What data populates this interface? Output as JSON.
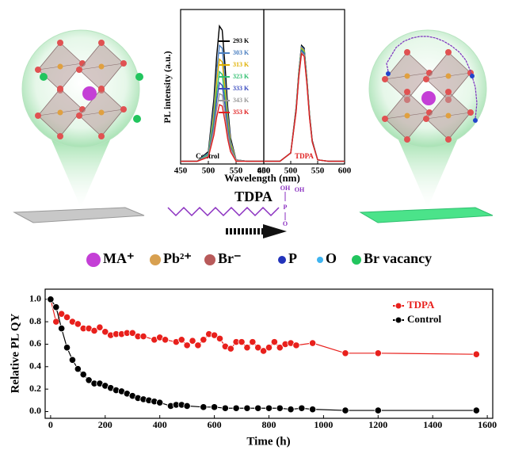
{
  "chart_data": [
    {
      "type": "line",
      "xlabel": "Wavelength (nm)",
      "ylabel": "PL intensity (a.u.)",
      "panel_label": "Control",
      "legend": "upper right",
      "x": [
        450,
        480,
        500,
        510,
        515,
        520,
        525,
        530,
        535,
        540,
        550,
        570,
        600
      ],
      "xlim": [
        450,
        600
      ],
      "xticks": [
        450,
        500,
        550,
        600
      ],
      "ylim": [
        -0.02,
        1.1
      ],
      "series": [
        {
          "name": "293 K",
          "color": "#000000",
          "values": [
            0,
            0,
            0.07,
            0.45,
            0.76,
            0.98,
            0.95,
            0.7,
            0.39,
            0.17,
            0.01,
            0,
            0
          ]
        },
        {
          "name": "303 K",
          "color": "#4a7fc1",
          "values": [
            0,
            0,
            0.06,
            0.39,
            0.65,
            0.84,
            0.82,
            0.6,
            0.34,
            0.15,
            0.01,
            0,
            0
          ]
        },
        {
          "name": "313 K",
          "color": "#e0b000",
          "values": [
            0,
            0,
            0.05,
            0.34,
            0.58,
            0.74,
            0.72,
            0.53,
            0.3,
            0.13,
            0.01,
            0,
            0
          ]
        },
        {
          "name": "323 K",
          "color": "#2fbf6f",
          "values": [
            0,
            0,
            0.05,
            0.3,
            0.5,
            0.65,
            0.63,
            0.46,
            0.26,
            0.11,
            0.01,
            0,
            0
          ]
        },
        {
          "name": "333 K",
          "color": "#3b4cbf",
          "values": [
            0,
            0,
            0.04,
            0.26,
            0.44,
            0.57,
            0.55,
            0.41,
            0.23,
            0.1,
            0.01,
            0,
            0
          ]
        },
        {
          "name": "343 K",
          "color": "#999999",
          "values": [
            0,
            0,
            0.04,
            0.23,
            0.38,
            0.49,
            0.48,
            0.35,
            0.2,
            0.09,
            0.01,
            0,
            0
          ]
        },
        {
          "name": "353 K",
          "color": "#e02020",
          "values": [
            0,
            0,
            0.03,
            0.19,
            0.32,
            0.41,
            0.4,
            0.29,
            0.16,
            0.07,
            0,
            0,
            0
          ]
        }
      ]
    },
    {
      "type": "line",
      "panel_label": "TDPA",
      "x": [
        450,
        480,
        500,
        510,
        515,
        520,
        525,
        530,
        535,
        540,
        550,
        570,
        600
      ],
      "xlim": [
        450,
        600
      ],
      "xticks": [
        450,
        500,
        550,
        600
      ],
      "ylim": [
        -0.02,
        1.1
      ],
      "series": [
        {
          "color": "#000000",
          "values": [
            0,
            0,
            0.06,
            0.39,
            0.65,
            0.84,
            0.82,
            0.6,
            0.34,
            0.15,
            0.01,
            0,
            0
          ]
        },
        {
          "color": "#4a7fc1",
          "values": [
            0,
            0,
            0.06,
            0.38,
            0.65,
            0.83,
            0.81,
            0.6,
            0.33,
            0.14,
            0.01,
            0,
            0
          ]
        },
        {
          "color": "#e0b000",
          "values": [
            0,
            0,
            0.06,
            0.38,
            0.64,
            0.82,
            0.8,
            0.59,
            0.33,
            0.14,
            0.01,
            0,
            0
          ]
        },
        {
          "color": "#2fbf6f",
          "values": [
            0,
            0,
            0.06,
            0.37,
            0.63,
            0.81,
            0.79,
            0.58,
            0.32,
            0.14,
            0.01,
            0,
            0
          ]
        },
        {
          "color": "#3b4cbf",
          "values": [
            0,
            0,
            0.06,
            0.37,
            0.62,
            0.8,
            0.78,
            0.57,
            0.32,
            0.14,
            0.01,
            0,
            0
          ]
        },
        {
          "color": "#999999",
          "values": [
            0,
            0,
            0.06,
            0.36,
            0.62,
            0.79,
            0.77,
            0.57,
            0.32,
            0.14,
            0.01,
            0,
            0
          ]
        },
        {
          "color": "#e02020",
          "values": [
            0,
            0,
            0.06,
            0.36,
            0.61,
            0.78,
            0.76,
            0.56,
            0.31,
            0.14,
            0.01,
            0,
            0
          ]
        }
      ]
    },
    {
      "type": "line",
      "xlabel": "Time (h)",
      "ylabel": "Relative PL QY",
      "legend": "upper right",
      "markers": true,
      "xlim": [
        -20,
        1620
      ],
      "xticks": [
        0,
        200,
        400,
        600,
        800,
        1000,
        1200,
        1400,
        1600
      ],
      "ylim": [
        -0.06,
        1.09
      ],
      "yticks": [
        {
          "value": 0,
          "label": "0.0"
        },
        0.2,
        0.4,
        0.6,
        0.8,
        {
          "value": 1,
          "label": "1.0"
        }
      ],
      "series": [
        {
          "name": "TDPA",
          "color": "#e8201c",
          "x": [
            0,
            20,
            40,
            60,
            80,
            100,
            120,
            140,
            160,
            180,
            200,
            220,
            240,
            260,
            280,
            300,
            320,
            340,
            380,
            400,
            420,
            460,
            480,
            500,
            520,
            540,
            560,
            580,
            600,
            620,
            640,
            660,
            680,
            700,
            720,
            740,
            760,
            780,
            800,
            820,
            840,
            860,
            880,
            900,
            960,
            1080,
            1200,
            1560
          ],
          "values": [
            1.0,
            0.8,
            0.87,
            0.84,
            0.8,
            0.78,
            0.74,
            0.74,
            0.72,
            0.75,
            0.71,
            0.68,
            0.69,
            0.69,
            0.7,
            0.7,
            0.67,
            0.67,
            0.64,
            0.66,
            0.64,
            0.62,
            0.64,
            0.59,
            0.63,
            0.59,
            0.64,
            0.69,
            0.68,
            0.65,
            0.58,
            0.56,
            0.62,
            0.62,
            0.57,
            0.62,
            0.57,
            0.54,
            0.57,
            0.62,
            0.57,
            0.6,
            0.61,
            0.59,
            0.61,
            0.52,
            0.52,
            0.51
          ]
        },
        {
          "name": "Control",
          "color": "#000000",
          "x": [
            0,
            20,
            40,
            60,
            80,
            100,
            120,
            140,
            160,
            180,
            200,
            220,
            240,
            260,
            280,
            300,
            320,
            340,
            360,
            380,
            400,
            440,
            460,
            480,
            500,
            560,
            600,
            640,
            680,
            720,
            760,
            800,
            840,
            880,
            920,
            960,
            1080,
            1200,
            1560
          ],
          "values": [
            1.0,
            0.93,
            0.74,
            0.57,
            0.46,
            0.38,
            0.33,
            0.28,
            0.25,
            0.25,
            0.23,
            0.21,
            0.19,
            0.18,
            0.16,
            0.14,
            0.12,
            0.11,
            0.1,
            0.09,
            0.08,
            0.05,
            0.06,
            0.06,
            0.05,
            0.04,
            0.04,
            0.03,
            0.03,
            0.03,
            0.03,
            0.03,
            0.03,
            0.02,
            0.03,
            0.02,
            0.01,
            0.01,
            0.01
          ]
        }
      ]
    }
  ],
  "schematic": {
    "molecule": "TDPA",
    "molecule_atoms": [
      "OH",
      "OH",
      "P",
      "O"
    ],
    "legend": [
      "MA⁺",
      "Pb²⁺",
      "Br⁻",
      "P",
      "O",
      "Br vacancy"
    ]
  }
}
